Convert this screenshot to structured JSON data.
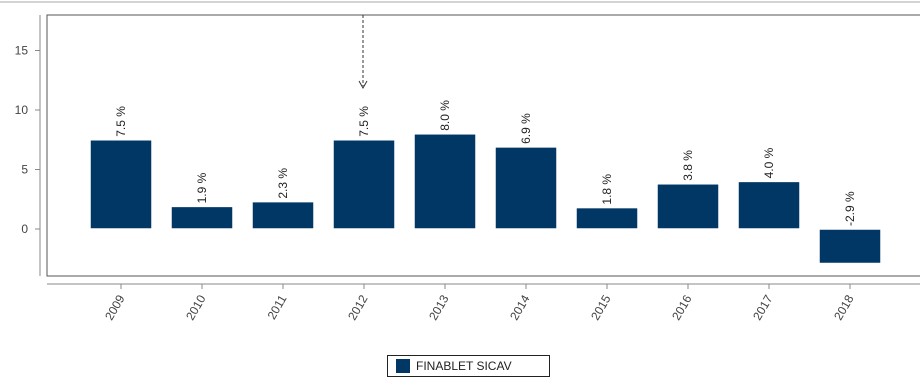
{
  "chart_data": {
    "type": "bar",
    "categories": [
      "2009",
      "2010",
      "2011",
      "2012",
      "2013",
      "2014",
      "2015",
      "2016",
      "2017",
      "2018"
    ],
    "series": [
      {
        "name": "FINABLET SICAV",
        "values": [
          7.5,
          1.9,
          2.3,
          7.5,
          8.0,
          6.9,
          1.8,
          3.8,
          4.0,
          -2.9
        ],
        "labels": [
          "7.5 %",
          "1.9 %",
          "2.3 %",
          "7.5 %",
          "8.0 %",
          "6.9 %",
          "1.8 %",
          "3.8 %",
          "4.0 %",
          "-2.9 %"
        ]
      }
    ],
    "yticks": [
      0,
      5,
      10,
      15
    ],
    "ytick_labels": [
      "0",
      "5",
      "10",
      "15"
    ],
    "ylim": [
      -4,
      18
    ],
    "grid": false,
    "legend_position": "bottom-center",
    "colors": {
      "bar": "#003764",
      "frame": "#555555",
      "axis": "#888888"
    }
  }
}
